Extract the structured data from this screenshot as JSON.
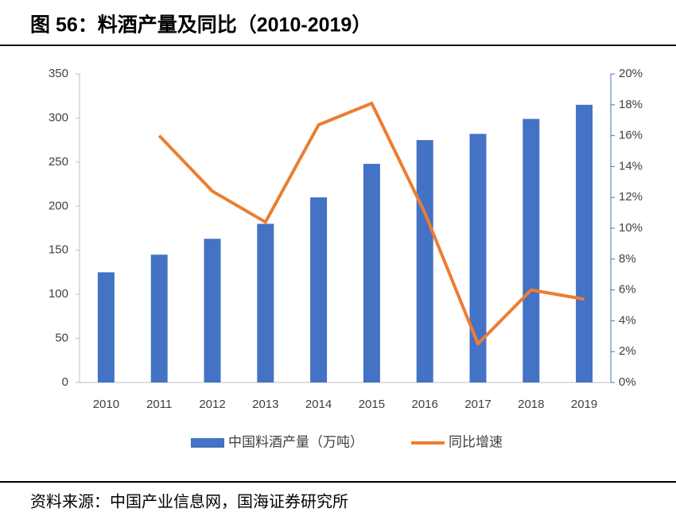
{
  "chart_data": {
    "type": "bar",
    "title": "图 56：料酒产量及同比（2010-2019）",
    "source": "资料来源：中国产业信息网，国海证券研究所",
    "categories": [
      "2010",
      "2011",
      "2012",
      "2013",
      "2014",
      "2015",
      "2016",
      "2017",
      "2018",
      "2019"
    ],
    "series": [
      {
        "name": "中国料酒产量（万吨）",
        "type": "bar",
        "color": "#4472c4",
        "values": [
          125,
          145,
          163,
          180,
          210,
          248,
          275,
          282,
          299,
          315
        ]
      },
      {
        "name": "同比增速",
        "type": "line",
        "axis": "y2",
        "color": "#ed7d31",
        "values": [
          null,
          16.0,
          12.4,
          10.4,
          16.7,
          18.1,
          11.0,
          2.5,
          6.0,
          5.4
        ]
      }
    ],
    "ylim": [
      0,
      350
    ],
    "yticks": [
      0,
      50,
      100,
      150,
      200,
      250,
      300,
      350
    ],
    "y2lim": [
      0,
      20
    ],
    "y2ticks": [
      {
        "value": 0,
        "label": "0%"
      },
      {
        "value": 2,
        "label": "2%"
      },
      {
        "value": 4,
        "label": "4%"
      },
      {
        "value": 6,
        "label": "6%"
      },
      {
        "value": 8,
        "label": "8%"
      },
      {
        "value": 10,
        "label": "10%"
      },
      {
        "value": 12,
        "label": "12%"
      },
      {
        "value": 14,
        "label": "14%"
      },
      {
        "value": 16,
        "label": "16%"
      },
      {
        "value": 18,
        "label": "18%"
      },
      {
        "value": 20,
        "label": "20%"
      }
    ],
    "legend": "bottom"
  }
}
